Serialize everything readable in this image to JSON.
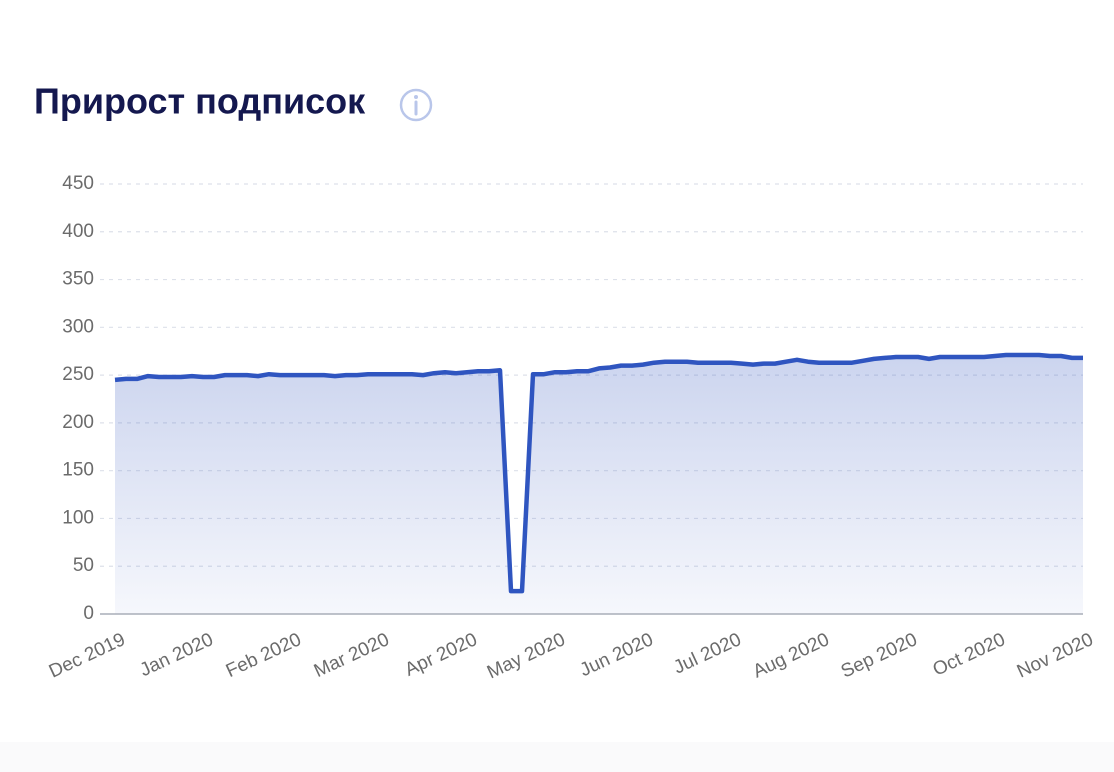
{
  "chart_data": {
    "type": "area",
    "title": "Прирост подписок",
    "x_labels": [
      "Dec 2019",
      "Jan 2020",
      "Feb 2020",
      "Mar 2020",
      "Apr 2020",
      "May 2020",
      "Jun 2020",
      "Jul 2020",
      "Aug 2020",
      "Sep 2020",
      "Oct 2020",
      "Nov 2020"
    ],
    "values": [
      245,
      246,
      246,
      249,
      248,
      248,
      248,
      249,
      248,
      248,
      250,
      250,
      250,
      249,
      251,
      250,
      250,
      250,
      250,
      250,
      249,
      250,
      250,
      251,
      251,
      251,
      251,
      251,
      250,
      252,
      253,
      252,
      253,
      254,
      254,
      255,
      24,
      24,
      251,
      251,
      253,
      253,
      254,
      254,
      257,
      258,
      260,
      260,
      261,
      263,
      264,
      264,
      264,
      263,
      263,
      263,
      263,
      262,
      261,
      262,
      262,
      264,
      266,
      264,
      263,
      263,
      263,
      263,
      265,
      267,
      268,
      269,
      269,
      269,
      267,
      269,
      269,
      269,
      269,
      269,
      270,
      271,
      271,
      271,
      271,
      270,
      270,
      268,
      268
    ],
    "color": "#2f55c0",
    "ylim": [
      0,
      450
    ],
    "yticks": [
      0,
      50,
      100,
      150,
      200,
      250,
      300,
      350,
      400,
      450
    ],
    "grid": true
  }
}
